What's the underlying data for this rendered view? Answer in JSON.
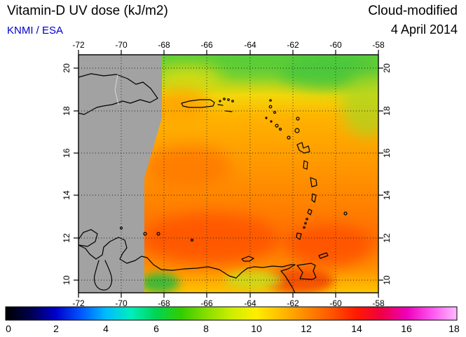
{
  "header": {
    "title": "Vitamin-D UV dose (kJ/m2)",
    "credit": "KNMI / ESA",
    "credit_color": "#0000cc",
    "mode_label": "Cloud-modified",
    "date_label": "4 April 2014"
  },
  "map": {
    "lon_ticks": [
      "-72",
      "-70",
      "-68",
      "-66",
      "-64",
      "-62",
      "-60",
      "-58"
    ],
    "lat_ticks": [
      "20",
      "18",
      "16",
      "14",
      "12",
      "10"
    ],
    "no_data_color": "#a2a2a2",
    "coastline_color": "#000000",
    "graticule": "dotted lines every 2 degrees"
  },
  "colorbar": {
    "tick_labels": [
      "0",
      "2",
      "4",
      "6",
      "8",
      "10",
      "12",
      "14",
      "16",
      "18"
    ],
    "min": 0,
    "max": 18,
    "colors": [
      "#000000",
      "#00004d",
      "#0000cc",
      "#0055ff",
      "#00bbff",
      "#00eebb",
      "#00d455",
      "#33cc00",
      "#88dd00",
      "#ccee00",
      "#ffee00",
      "#ffbb00",
      "#ff8800",
      "#ff5500",
      "#ff1a00",
      "#ee0044",
      "#ee00bb",
      "#ff55ee",
      "#ffbbff"
    ]
  },
  "chart_data": {
    "type": "heatmap",
    "title": "Vitamin-D UV dose (kJ/m2)",
    "subtitle": "Cloud-modified",
    "date": "4 April 2014",
    "source": "KNMI / ESA",
    "units": "kJ/m2",
    "region": "Caribbean: Hispaniola, Puerto Rico, Lesser Antilles, northern Venezuela",
    "lon_range": [
      -72,
      -58
    ],
    "lat_range": [
      10,
      20
    ],
    "value_range": [
      0,
      18
    ],
    "legend_position": "bottom colorbar",
    "no_data": "Grey area west of ~68.5W (narrowing to ~69.5W in the south) = outside satellite swath / no data",
    "sample_grid": {
      "lons": [
        -68,
        -66,
        -64,
        -62,
        -60,
        -58
      ],
      "lats": [
        20,
        18,
        16,
        14,
        12,
        10
      ],
      "values_kj_m2": [
        [
          9.0,
          8.5,
          8.0,
          8.5,
          7.5,
          8.0
        ],
        [
          11.0,
          10.5,
          10.5,
          10.0,
          9.0,
          9.5
        ],
        [
          11.5,
          11.5,
          11.0,
          11.0,
          11.0,
          10.5
        ],
        [
          12.0,
          12.0,
          11.5,
          11.5,
          11.5,
          11.0
        ],
        [
          12.5,
          13.0,
          12.5,
          12.0,
          12.5,
          12.0
        ],
        [
          9.0,
          11.0,
          10.5,
          12.5,
          13.0,
          12.0
        ]
      ]
    }
  }
}
